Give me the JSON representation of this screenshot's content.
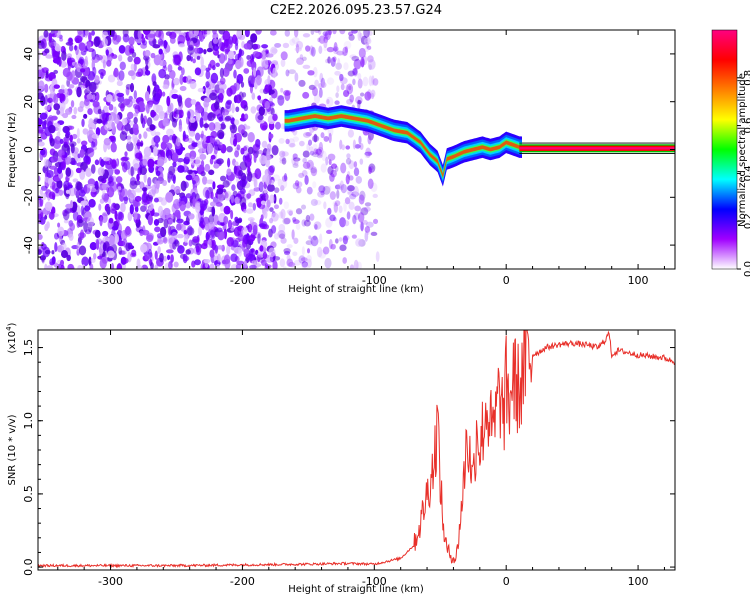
{
  "title": "C2E2.2026.095.23.57.G24",
  "chart_data": [
    {
      "type": "heatmap",
      "xlabel": "Height of straight line (km)",
      "ylabel": "Frequency (Hz)",
      "xlim": [
        -355,
        128
      ],
      "ylim": [
        -50,
        50
      ],
      "xticks": [
        -300,
        -200,
        -100,
        0,
        100
      ],
      "yticks": [
        -40,
        -20,
        0,
        20,
        40
      ],
      "colorbar": {
        "label": "Normalized spectral amplitude",
        "range": [
          0,
          1
        ],
        "ticks": [
          "0.0",
          "0.2",
          "0.4",
          "0.6",
          "0.8"
        ],
        "colors": [
          "#ffffff",
          "#a000ff",
          "#0000ff",
          "#00ffff",
          "#00ff00",
          "#ffff00",
          "#ff7f00",
          "#ff0000",
          "#ff0080"
        ]
      },
      "ridge": {
        "x": [
          -165,
          -155,
          -145,
          -135,
          -125,
          -115,
          -105,
          -95,
          -85,
          -75,
          -65,
          -58,
          -52,
          -48,
          -45,
          -40,
          -32,
          -25,
          -18,
          -12,
          -5,
          0,
          5,
          10,
          30,
          60,
          90,
          128
        ],
        "y": [
          12,
          13,
          14,
          13,
          14,
          13,
          12,
          10,
          8,
          7,
          3,
          -2,
          -5,
          -11,
          -4,
          -3,
          -1,
          0,
          1,
          0,
          1,
          3,
          2,
          1,
          0.5,
          0.5,
          0.5,
          0.5
        ]
      }
    },
    {
      "type": "line",
      "xlabel": "Height of straight line (km)",
      "ylabel": "SNR (10 * v/v)",
      "scale_label": "(x10",
      "scale_exp": "4",
      "scale_suffix": ")",
      "xlim": [
        -355,
        128
      ],
      "ylim": [
        -0.02,
        1.62
      ],
      "xticks": [
        -300,
        -200,
        -100,
        0,
        100
      ],
      "yticks": [
        "0.0",
        "0.5",
        "1.0",
        "1.5"
      ],
      "color": "#e8302a",
      "x": [
        -355,
        -300,
        -250,
        -200,
        -150,
        -120,
        -100,
        -90,
        -80,
        -70,
        -65,
        -60,
        -55,
        -52,
        -50,
        -48,
        -45,
        -42,
        -38,
        -35,
        -32,
        -30,
        -25,
        -22,
        -20,
        -15,
        -10,
        -5,
        -2,
        0,
        2,
        5,
        10,
        15,
        20,
        25,
        30,
        40,
        50,
        60,
        70,
        75,
        78,
        80,
        85,
        90,
        100,
        110,
        120,
        128
      ],
      "y": [
        0.01,
        0.01,
        0.01,
        0.015,
        0.02,
        0.025,
        0.02,
        0.04,
        0.06,
        0.15,
        0.3,
        0.5,
        0.7,
        1.0,
        0.6,
        0.3,
        0.12,
        0.08,
        0.05,
        0.3,
        0.6,
        0.9,
        0.6,
        1.0,
        0.8,
        1.1,
        0.9,
        1.2,
        1.0,
        1.25,
        1.1,
        1.3,
        1.2,
        1.4,
        1.45,
        1.47,
        1.5,
        1.52,
        1.53,
        1.52,
        1.5,
        1.55,
        1.6,
        1.45,
        1.48,
        1.47,
        1.45,
        1.44,
        1.43,
        1.4
      ]
    }
  ]
}
